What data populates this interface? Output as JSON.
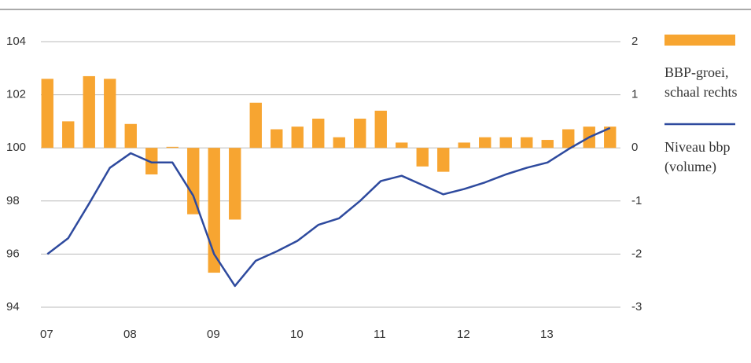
{
  "chart_data": {
    "type": "combo",
    "categories": [
      "07",
      null,
      null,
      null,
      "08",
      null,
      null,
      null,
      "09",
      null,
      null,
      null,
      "10",
      null,
      null,
      null,
      "11",
      null,
      null,
      null,
      "12",
      null,
      null,
      null,
      "13",
      null,
      null,
      null
    ],
    "series": [
      {
        "name": "BBP-groei, schaal rechts",
        "type": "bar",
        "axis": "y2",
        "color": "#f7a531",
        "values": [
          1.3,
          0.5,
          1.35,
          1.3,
          0.45,
          -0.5,
          0.02,
          -1.25,
          -2.35,
          -1.35,
          0.85,
          0.35,
          0.4,
          0.55,
          0.2,
          0.55,
          0.7,
          0.1,
          -0.35,
          -0.45,
          0.1,
          0.2,
          0.2,
          0.2,
          0.15,
          0.35,
          0.4,
          0.4
        ]
      },
      {
        "name": "Niveau bbp (volume)",
        "type": "line",
        "axis": "y",
        "color": "#2e4a9e",
        "values": [
          96.0,
          96.6,
          97.9,
          99.25,
          99.8,
          99.45,
          99.45,
          98.2,
          96.0,
          94.8,
          95.75,
          96.1,
          96.5,
          97.1,
          97.35,
          98.0,
          98.75,
          98.95,
          98.6,
          98.25,
          98.45,
          98.7,
          99.0,
          99.25,
          99.45,
          99.95,
          100.4,
          100.75
        ]
      }
    ],
    "ylim": [
      94,
      104
    ],
    "yticks": [
      94,
      96,
      98,
      100,
      102,
      104
    ],
    "y2lim": [
      -3,
      2
    ],
    "y2ticks": [
      -3,
      -2,
      -1,
      0,
      1,
      2
    ],
    "grid": true
  }
}
